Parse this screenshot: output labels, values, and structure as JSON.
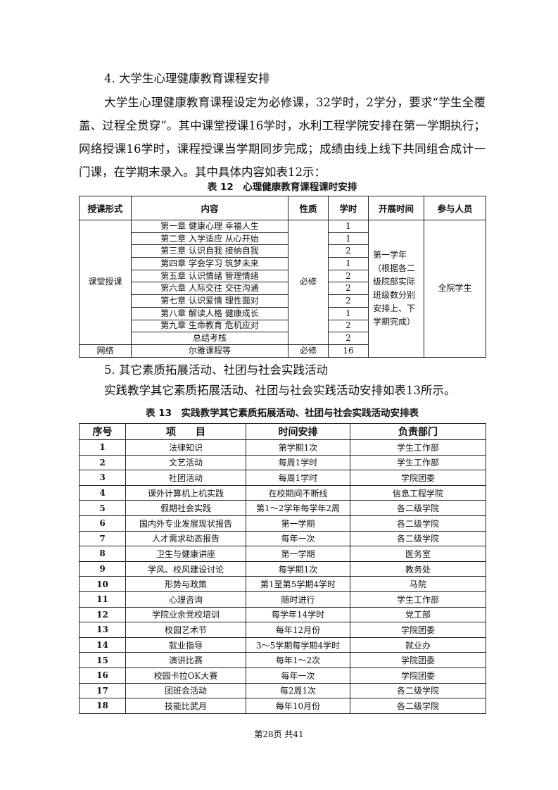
{
  "section4": {
    "heading": "4. 大学生心理健康教育课程安排",
    "paragraph": "大学生心理健康教育课程设定为必修课，32学时，2学分，要求“学生全覆盖、过程全贯穿”。其中课堂授课16学时，水利工程学院安排在第一学期执行；网络授课16学时，课程授课当学期同步完成；成绩由线上线下共同组合成计一门课，在学期末录入。其中具体内容如表12示："
  },
  "table12": {
    "caption": "表 12　心理健康教育课程课时安排",
    "headers": [
      "授课形式",
      "内容",
      "性质",
      "学时",
      "开展时间",
      "参与人员"
    ],
    "classroom_label": "课堂授课",
    "classroom_nature": "必修",
    "time": "第一学年（根据各二级院部实际班级数分别安排上、下学期完成）",
    "participants": "全院学生",
    "rows": [
      {
        "content": "第一章 健康心理 幸福人生",
        "hours": "1"
      },
      {
        "content": "第二章 入学适应 从心开始",
        "hours": "1"
      },
      {
        "content": "第三章 认识自我 接纳自我",
        "hours": "2"
      },
      {
        "content": "第四章 学会学习 筑梦未来",
        "hours": "1"
      },
      {
        "content": "第五章 认识情绪 管理情绪",
        "hours": "2"
      },
      {
        "content": "第六章 人际交往 交往沟通",
        "hours": "2"
      },
      {
        "content": "第七章 认识爱情 理性面对",
        "hours": "2"
      },
      {
        "content": "第八章 解读人格 健康成长",
        "hours": "1"
      },
      {
        "content": "第九章 生命教育 危机应对",
        "hours": "2"
      },
      {
        "content": "总结考核",
        "hours": "2"
      }
    ],
    "online": {
      "form": "网络",
      "content": "尔雅课程等",
      "nature": "必修",
      "hours": "16"
    }
  },
  "section5": {
    "heading": "5. 其它素质拓展活动、社团与社会实践活动",
    "paragraph": "实践教学其它素质拓展活动、社团与社会实践活动安排如表13所示。"
  },
  "table13": {
    "caption": "表 13　实践教学其它素质拓展活动、社团与社会实践活动安排表",
    "headers": [
      "序号",
      "项　　目",
      "时间安排",
      "负责部门"
    ],
    "rows": [
      [
        "1",
        "法律知识",
        "第学期1次",
        "学生工作部"
      ],
      [
        "2",
        "文艺活动",
        "每周1学时",
        "学生工作部"
      ],
      [
        "3",
        "社团活动",
        "每周1学时",
        "学院团委"
      ],
      [
        "4",
        "课外计算机上机实践",
        "在校期间不断线",
        "信息工程学院"
      ],
      [
        "5",
        "假期社会实践",
        "第1～2学年每学年2周",
        "各二级学院"
      ],
      [
        "6",
        "国内外专业发展现状报告",
        "第一学期",
        "各二级学院"
      ],
      [
        "7",
        "人才需求动态报告",
        "每年一次",
        "各二级学院"
      ],
      [
        "8",
        "卫生与健康讲座",
        "第一学期",
        "医务室"
      ],
      [
        "9",
        "学风、校风建设讨论",
        "每学期1次",
        "教务处"
      ],
      [
        "10",
        "形势与政策",
        "第1至第5学期4学时",
        "马院"
      ],
      [
        "11",
        "心理咨询",
        "随时进行",
        "学生工作部"
      ],
      [
        "12",
        "学院业余党校培训",
        "每学年14学时",
        "党工部"
      ],
      [
        "13",
        "校园艺术节",
        "每年12月份",
        "学院团委"
      ],
      [
        "14",
        "就业指导",
        "3～5学期每学期4学时",
        "就业办"
      ],
      [
        "15",
        "演讲比赛",
        "每年1～2次",
        "学院团委"
      ],
      [
        "16",
        "校园卡拉OK大赛",
        "每年一次",
        "学院团委"
      ],
      [
        "17",
        "团班会活动",
        "每2周1次",
        "各二级学院"
      ],
      [
        "18",
        "技能比武月",
        "每年10月份",
        "各二级学院"
      ]
    ]
  },
  "footer": "第28页  共41"
}
